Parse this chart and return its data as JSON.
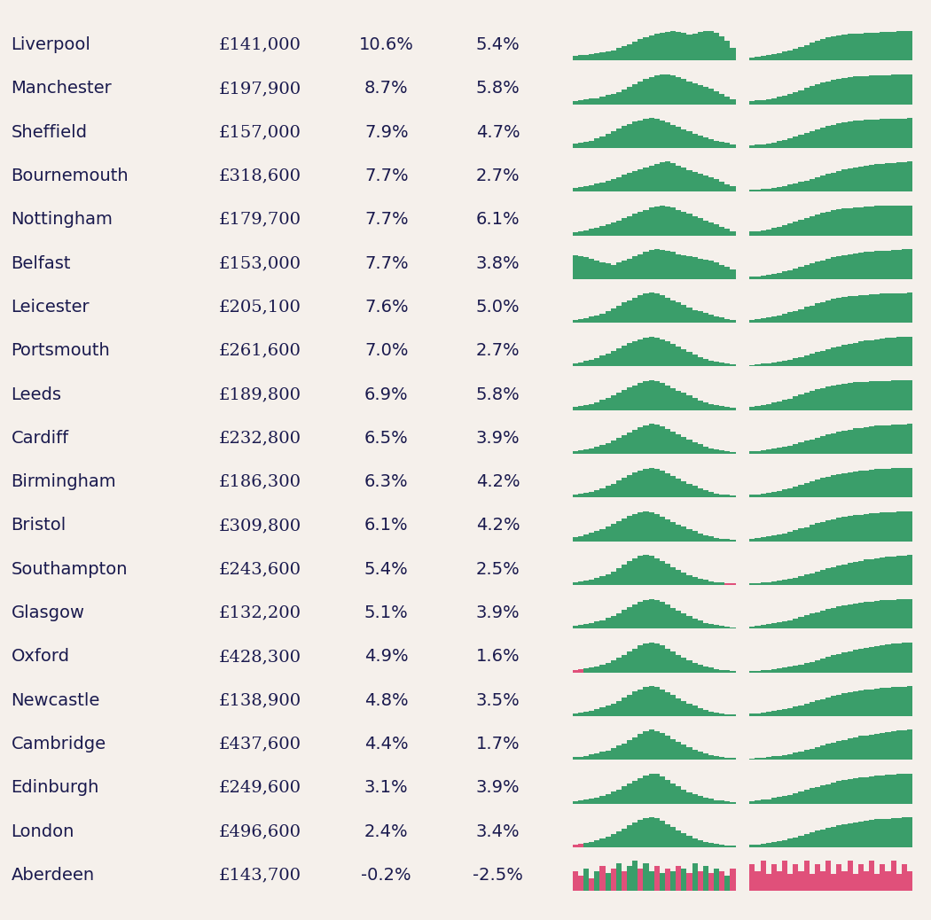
{
  "cities": [
    "Liverpool",
    "Manchester",
    "Sheffield",
    "Bournemouth",
    "Nottingham",
    "Belfast",
    "Leicester",
    "Portsmouth",
    "Leeds",
    "Cardiff",
    "Birmingham",
    "Bristol",
    "Southampton",
    "Glasgow",
    "Oxford",
    "Newcastle",
    "Cambridge",
    "Edinburgh",
    "London",
    "Aberdeen"
  ],
  "prices": [
    "£141,000",
    "£197,900",
    "£157,000",
    "£318,600",
    "£179,700",
    "£153,000",
    "£205,100",
    "£261,600",
    "£189,800",
    "£232,800",
    "£186,300",
    "£309,800",
    "£243,600",
    "£132,200",
    "£428,300",
    "£138,900",
    "£437,600",
    "£249,600",
    "£496,600",
    "£143,700"
  ],
  "pct_2021": [
    10.6,
    8.7,
    7.9,
    7.7,
    7.7,
    7.7,
    7.6,
    7.0,
    6.9,
    6.5,
    6.3,
    6.1,
    5.4,
    5.1,
    4.9,
    4.8,
    4.4,
    3.1,
    2.4,
    -0.2
  ],
  "pct_5yr": [
    5.4,
    5.8,
    4.7,
    2.7,
    6.1,
    3.8,
    5.0,
    2.7,
    5.8,
    3.9,
    4.2,
    4.2,
    2.5,
    3.9,
    1.6,
    3.5,
    1.7,
    3.9,
    3.4,
    -2.5
  ],
  "bg_color": "#f5f0eb",
  "text_color": "#1a1a4e",
  "green_color": "#3a9e6a",
  "pink_color": "#e0507a",
  "city_fontsize": 14,
  "data_fontsize": 14,
  "spark1_shapes": [
    [
      0.15,
      0.17,
      0.18,
      0.2,
      0.22,
      0.25,
      0.28,
      0.32,
      0.38,
      0.44,
      0.5,
      0.58,
      0.65,
      0.72,
      0.78,
      0.82,
      0.86,
      0.88,
      0.9,
      0.88,
      0.85,
      0.8,
      0.82,
      0.88,
      0.92,
      0.9,
      0.85,
      0.75,
      0.6,
      0.4
    ],
    [
      0.1,
      0.12,
      0.14,
      0.16,
      0.18,
      0.22,
      0.26,
      0.3,
      0.36,
      0.42,
      0.5,
      0.58,
      0.65,
      0.72,
      0.78,
      0.82,
      0.85,
      0.86,
      0.82,
      0.78,
      0.72,
      0.65,
      0.6,
      0.55,
      0.5,
      0.45,
      0.38,
      0.3,
      0.22,
      0.15
    ],
    [
      0.12,
      0.14,
      0.16,
      0.2,
      0.25,
      0.3,
      0.38,
      0.45,
      0.52,
      0.58,
      0.64,
      0.7,
      0.74,
      0.78,
      0.8,
      0.78,
      0.74,
      0.68,
      0.62,
      0.56,
      0.5,
      0.44,
      0.38,
      0.32,
      0.28,
      0.24,
      0.2,
      0.16,
      0.13,
      0.1
    ],
    [
      0.1,
      0.12,
      0.15,
      0.18,
      0.22,
      0.26,
      0.3,
      0.35,
      0.4,
      0.46,
      0.52,
      0.56,
      0.62,
      0.66,
      0.72,
      0.76,
      0.8,
      0.82,
      0.78,
      0.72,
      0.66,
      0.6,
      0.55,
      0.5,
      0.45,
      0.4,
      0.35,
      0.28,
      0.2,
      0.14
    ],
    [
      0.08,
      0.1,
      0.12,
      0.15,
      0.18,
      0.22,
      0.26,
      0.3,
      0.35,
      0.4,
      0.45,
      0.5,
      0.55,
      0.6,
      0.65,
      0.68,
      0.7,
      0.68,
      0.65,
      0.6,
      0.55,
      0.5,
      0.45,
      0.4,
      0.35,
      0.3,
      0.25,
      0.2,
      0.15,
      0.1
    ],
    [
      0.5,
      0.48,
      0.45,
      0.42,
      0.38,
      0.35,
      0.32,
      0.3,
      0.35,
      0.38,
      0.42,
      0.48,
      0.52,
      0.56,
      0.6,
      0.62,
      0.6,
      0.58,
      0.56,
      0.52,
      0.5,
      0.48,
      0.45,
      0.42,
      0.4,
      0.38,
      0.35,
      0.3,
      0.25,
      0.2
    ],
    [
      0.08,
      0.1,
      0.12,
      0.15,
      0.18,
      0.22,
      0.28,
      0.35,
      0.42,
      0.5,
      0.56,
      0.62,
      0.68,
      0.72,
      0.74,
      0.72,
      0.68,
      0.62,
      0.56,
      0.5,
      0.44,
      0.38,
      0.32,
      0.28,
      0.24,
      0.2,
      0.16,
      0.13,
      0.1,
      0.08
    ],
    [
      0.08,
      0.1,
      0.13,
      0.16,
      0.2,
      0.25,
      0.3,
      0.36,
      0.42,
      0.48,
      0.54,
      0.6,
      0.64,
      0.68,
      0.7,
      0.68,
      0.64,
      0.58,
      0.52,
      0.46,
      0.4,
      0.34,
      0.28,
      0.22,
      0.18,
      0.14,
      0.11,
      0.09,
      0.07,
      0.06
    ],
    [
      0.08,
      0.1,
      0.12,
      0.15,
      0.19,
      0.24,
      0.29,
      0.35,
      0.41,
      0.47,
      0.53,
      0.58,
      0.63,
      0.67,
      0.7,
      0.68,
      0.64,
      0.58,
      0.52,
      0.46,
      0.4,
      0.34,
      0.28,
      0.23,
      0.18,
      0.14,
      0.11,
      0.09,
      0.07,
      0.06
    ],
    [
      0.06,
      0.08,
      0.1,
      0.13,
      0.16,
      0.2,
      0.25,
      0.3,
      0.36,
      0.42,
      0.48,
      0.54,
      0.6,
      0.65,
      0.68,
      0.66,
      0.62,
      0.56,
      0.5,
      0.44,
      0.38,
      0.32,
      0.27,
      0.22,
      0.17,
      0.13,
      0.1,
      0.08,
      0.06,
      0.05
    ],
    [
      0.06,
      0.08,
      0.1,
      0.13,
      0.16,
      0.2,
      0.25,
      0.3,
      0.36,
      0.42,
      0.48,
      0.54,
      0.58,
      0.62,
      0.64,
      0.62,
      0.58,
      0.52,
      0.46,
      0.4,
      0.35,
      0.3,
      0.25,
      0.2,
      0.16,
      0.12,
      0.09,
      0.07,
      0.06,
      0.05
    ],
    [
      0.1,
      0.12,
      0.15,
      0.19,
      0.23,
      0.28,
      0.34,
      0.4,
      0.46,
      0.52,
      0.58,
      0.62,
      0.66,
      0.68,
      0.66,
      0.62,
      0.56,
      0.5,
      0.44,
      0.38,
      0.33,
      0.28,
      0.23,
      0.18,
      0.14,
      0.11,
      0.08,
      0.06,
      0.05,
      0.04
    ],
    [
      0.06,
      0.07,
      0.09,
      0.11,
      0.14,
      0.18,
      0.22,
      0.27,
      0.33,
      0.4,
      0.48,
      0.54,
      0.58,
      0.6,
      0.58,
      0.54,
      0.48,
      0.42,
      0.36,
      0.3,
      0.25,
      0.2,
      0.16,
      0.13,
      0.1,
      0.08,
      0.06,
      0.05,
      0.04,
      0.03
    ],
    [
      0.05,
      0.07,
      0.09,
      0.11,
      0.14,
      0.17,
      0.21,
      0.26,
      0.31,
      0.37,
      0.43,
      0.49,
      0.54,
      0.58,
      0.6,
      0.58,
      0.54,
      0.48,
      0.42,
      0.36,
      0.3,
      0.25,
      0.2,
      0.16,
      0.12,
      0.09,
      0.07,
      0.05,
      0.04,
      0.03
    ],
    [
      0.05,
      0.06,
      0.08,
      0.1,
      0.12,
      0.15,
      0.19,
      0.23,
      0.28,
      0.34,
      0.4,
      0.46,
      0.52,
      0.56,
      0.58,
      0.56,
      0.52,
      0.46,
      0.4,
      0.34,
      0.29,
      0.24,
      0.19,
      0.15,
      0.12,
      0.09,
      0.07,
      0.05,
      0.04,
      0.03
    ],
    [
      0.05,
      0.07,
      0.09,
      0.11,
      0.14,
      0.17,
      0.21,
      0.25,
      0.3,
      0.36,
      0.42,
      0.48,
      0.53,
      0.57,
      0.59,
      0.57,
      0.53,
      0.47,
      0.41,
      0.35,
      0.3,
      0.25,
      0.2,
      0.16,
      0.12,
      0.09,
      0.07,
      0.05,
      0.04,
      0.03
    ],
    [
      0.05,
      0.06,
      0.08,
      0.1,
      0.12,
      0.15,
      0.18,
      0.22,
      0.27,
      0.32,
      0.38,
      0.44,
      0.5,
      0.55,
      0.58,
      0.56,
      0.52,
      0.46,
      0.4,
      0.34,
      0.29,
      0.24,
      0.2,
      0.16,
      0.12,
      0.09,
      0.07,
      0.05,
      0.04,
      0.03
    ],
    [
      0.04,
      0.05,
      0.07,
      0.09,
      0.11,
      0.14,
      0.17,
      0.21,
      0.25,
      0.3,
      0.35,
      0.4,
      0.45,
      0.5,
      0.53,
      0.52,
      0.48,
      0.42,
      0.36,
      0.3,
      0.25,
      0.2,
      0.16,
      0.13,
      0.1,
      0.08,
      0.06,
      0.05,
      0.04,
      0.03
    ],
    [
      0.04,
      0.05,
      0.07,
      0.09,
      0.11,
      0.14,
      0.17,
      0.21,
      0.25,
      0.3,
      0.35,
      0.4,
      0.44,
      0.47,
      0.48,
      0.46,
      0.42,
      0.37,
      0.32,
      0.27,
      0.22,
      0.18,
      0.14,
      0.11,
      0.09,
      0.07,
      0.05,
      0.04,
      0.03,
      0.02
    ],
    [
      0.08,
      0.06,
      0.09,
      0.05,
      0.08,
      0.1,
      0.07,
      0.09,
      0.11,
      0.08,
      0.1,
      0.12,
      0.09,
      0.11,
      0.08,
      0.1,
      0.07,
      0.09,
      0.08,
      0.1,
      0.09,
      0.07,
      0.11,
      0.08,
      0.1,
      0.07,
      0.09,
      0.08,
      0.06,
      0.09
    ]
  ],
  "spark1_pink_indices": {
    "12": [
      28,
      29
    ],
    "14": [
      0,
      1
    ],
    "18": [
      0,
      1
    ],
    "19": [
      0,
      1,
      3,
      5,
      7,
      9,
      12,
      15,
      17,
      19,
      21,
      23,
      25,
      27,
      29
    ]
  },
  "spark2_shapes": [
    [
      0.1,
      0.12,
      0.14,
      0.17,
      0.2,
      0.24,
      0.28,
      0.33,
      0.38,
      0.44,
      0.5,
      0.56,
      0.62,
      0.68,
      0.73,
      0.77,
      0.8,
      0.82,
      0.84,
      0.85,
      0.86,
      0.87,
      0.88,
      0.89,
      0.9,
      0.91,
      0.92,
      0.93,
      0.94,
      0.95
    ],
    [
      0.1,
      0.12,
      0.14,
      0.17,
      0.2,
      0.24,
      0.29,
      0.34,
      0.4,
      0.46,
      0.53,
      0.59,
      0.65,
      0.7,
      0.75,
      0.79,
      0.83,
      0.86,
      0.88,
      0.9,
      0.91,
      0.92,
      0.93,
      0.94,
      0.95,
      0.95,
      0.96,
      0.96,
      0.97,
      0.97
    ],
    [
      0.08,
      0.1,
      0.12,
      0.15,
      0.18,
      0.22,
      0.26,
      0.31,
      0.36,
      0.42,
      0.48,
      0.54,
      0.6,
      0.65,
      0.7,
      0.74,
      0.78,
      0.81,
      0.84,
      0.86,
      0.88,
      0.89,
      0.9,
      0.91,
      0.92,
      0.93,
      0.93,
      0.94,
      0.94,
      0.95
    ],
    [
      0.05,
      0.06,
      0.08,
      0.1,
      0.12,
      0.15,
      0.18,
      0.21,
      0.25,
      0.29,
      0.34,
      0.39,
      0.44,
      0.49,
      0.54,
      0.58,
      0.63,
      0.67,
      0.71,
      0.74,
      0.77,
      0.79,
      0.81,
      0.83,
      0.85,
      0.87,
      0.88,
      0.89,
      0.9,
      0.91
    ],
    [
      0.12,
      0.14,
      0.17,
      0.2,
      0.24,
      0.28,
      0.33,
      0.38,
      0.44,
      0.5,
      0.56,
      0.62,
      0.68,
      0.73,
      0.77,
      0.81,
      0.84,
      0.87,
      0.89,
      0.91,
      0.92,
      0.93,
      0.94,
      0.95,
      0.95,
      0.96,
      0.96,
      0.97,
      0.97,
      0.97
    ],
    [
      0.07,
      0.09,
      0.11,
      0.14,
      0.17,
      0.2,
      0.24,
      0.28,
      0.33,
      0.38,
      0.43,
      0.49,
      0.54,
      0.59,
      0.64,
      0.68,
      0.72,
      0.75,
      0.78,
      0.81,
      0.83,
      0.85,
      0.87,
      0.88,
      0.89,
      0.9,
      0.91,
      0.92,
      0.93,
      0.94
    ],
    [
      0.1,
      0.12,
      0.14,
      0.17,
      0.2,
      0.24,
      0.28,
      0.33,
      0.38,
      0.44,
      0.5,
      0.55,
      0.61,
      0.66,
      0.71,
      0.75,
      0.79,
      0.82,
      0.84,
      0.86,
      0.88,
      0.89,
      0.9,
      0.91,
      0.92,
      0.93,
      0.93,
      0.94,
      0.94,
      0.95
    ],
    [
      0.05,
      0.06,
      0.08,
      0.1,
      0.12,
      0.14,
      0.17,
      0.2,
      0.24,
      0.28,
      0.32,
      0.37,
      0.42,
      0.46,
      0.51,
      0.55,
      0.59,
      0.63,
      0.67,
      0.7,
      0.73,
      0.76,
      0.78,
      0.8,
      0.82,
      0.84,
      0.85,
      0.86,
      0.87,
      0.88
    ],
    [
      0.12,
      0.14,
      0.17,
      0.2,
      0.24,
      0.28,
      0.33,
      0.38,
      0.44,
      0.5,
      0.56,
      0.62,
      0.67,
      0.72,
      0.77,
      0.8,
      0.83,
      0.86,
      0.88,
      0.9,
      0.91,
      0.92,
      0.93,
      0.94,
      0.95,
      0.95,
      0.96,
      0.96,
      0.97,
      0.97
    ],
    [
      0.08,
      0.09,
      0.11,
      0.13,
      0.16,
      0.19,
      0.22,
      0.26,
      0.3,
      0.35,
      0.4,
      0.45,
      0.5,
      0.55,
      0.6,
      0.64,
      0.68,
      0.72,
      0.75,
      0.78,
      0.8,
      0.82,
      0.84,
      0.86,
      0.87,
      0.88,
      0.89,
      0.9,
      0.91,
      0.92
    ],
    [
      0.08,
      0.1,
      0.12,
      0.15,
      0.18,
      0.21,
      0.25,
      0.29,
      0.34,
      0.39,
      0.44,
      0.5,
      0.55,
      0.6,
      0.64,
      0.68,
      0.72,
      0.75,
      0.78,
      0.8,
      0.82,
      0.84,
      0.86,
      0.87,
      0.88,
      0.89,
      0.9,
      0.91,
      0.92,
      0.92
    ],
    [
      0.08,
      0.1,
      0.12,
      0.15,
      0.18,
      0.21,
      0.25,
      0.29,
      0.34,
      0.39,
      0.44,
      0.5,
      0.55,
      0.6,
      0.64,
      0.68,
      0.72,
      0.75,
      0.78,
      0.8,
      0.82,
      0.84,
      0.86,
      0.87,
      0.88,
      0.89,
      0.9,
      0.91,
      0.92,
      0.92
    ],
    [
      0.04,
      0.05,
      0.07,
      0.08,
      0.1,
      0.12,
      0.15,
      0.18,
      0.21,
      0.25,
      0.29,
      0.33,
      0.37,
      0.42,
      0.46,
      0.5,
      0.54,
      0.58,
      0.62,
      0.65,
      0.68,
      0.71,
      0.73,
      0.75,
      0.77,
      0.79,
      0.8,
      0.82,
      0.83,
      0.84
    ],
    [
      0.07,
      0.09,
      0.11,
      0.13,
      0.16,
      0.19,
      0.22,
      0.26,
      0.3,
      0.35,
      0.4,
      0.45,
      0.5,
      0.55,
      0.59,
      0.63,
      0.67,
      0.7,
      0.73,
      0.76,
      0.78,
      0.8,
      0.82,
      0.84,
      0.85,
      0.86,
      0.87,
      0.88,
      0.89,
      0.9
    ],
    [
      0.03,
      0.04,
      0.05,
      0.06,
      0.08,
      0.1,
      0.12,
      0.14,
      0.17,
      0.2,
      0.23,
      0.27,
      0.31,
      0.35,
      0.39,
      0.43,
      0.47,
      0.51,
      0.54,
      0.57,
      0.6,
      0.63,
      0.65,
      0.67,
      0.69,
      0.71,
      0.73,
      0.74,
      0.75,
      0.76
    ],
    [
      0.07,
      0.08,
      0.1,
      0.12,
      0.14,
      0.17,
      0.2,
      0.23,
      0.27,
      0.31,
      0.36,
      0.4,
      0.45,
      0.49,
      0.54,
      0.58,
      0.61,
      0.65,
      0.68,
      0.71,
      0.73,
      0.75,
      0.77,
      0.79,
      0.8,
      0.82,
      0.83,
      0.84,
      0.85,
      0.86
    ],
    [
      0.03,
      0.04,
      0.05,
      0.06,
      0.08,
      0.1,
      0.12,
      0.14,
      0.17,
      0.2,
      0.23,
      0.27,
      0.31,
      0.34,
      0.38,
      0.41,
      0.45,
      0.48,
      0.51,
      0.54,
      0.57,
      0.59,
      0.61,
      0.63,
      0.65,
      0.67,
      0.68,
      0.7,
      0.71,
      0.72
    ],
    [
      0.07,
      0.09,
      0.11,
      0.13,
      0.16,
      0.19,
      0.22,
      0.26,
      0.3,
      0.35,
      0.4,
      0.45,
      0.5,
      0.54,
      0.58,
      0.62,
      0.66,
      0.69,
      0.72,
      0.75,
      0.77,
      0.79,
      0.81,
      0.83,
      0.84,
      0.85,
      0.86,
      0.87,
      0.88,
      0.89
    ],
    [
      0.06,
      0.08,
      0.1,
      0.12,
      0.14,
      0.17,
      0.2,
      0.24,
      0.28,
      0.32,
      0.37,
      0.42,
      0.47,
      0.51,
      0.55,
      0.59,
      0.63,
      0.66,
      0.69,
      0.72,
      0.74,
      0.76,
      0.78,
      0.8,
      0.81,
      0.82,
      0.83,
      0.84,
      0.85,
      0.86
    ],
    [
      0.08,
      0.06,
      0.09,
      0.05,
      0.08,
      0.06,
      0.09,
      0.05,
      0.08,
      0.06,
      0.09,
      0.05,
      0.08,
      0.06,
      0.09,
      0.05,
      0.08,
      0.06,
      0.09,
      0.05,
      0.08,
      0.06,
      0.09,
      0.05,
      0.08,
      0.06,
      0.09,
      0.05,
      0.08,
      0.06
    ]
  ],
  "spark2_pink_indices": {
    "19": [
      0,
      1,
      2,
      3,
      4,
      5,
      6,
      7,
      8,
      9,
      10,
      11,
      12,
      13,
      14,
      15,
      16,
      17,
      18,
      19,
      20,
      21,
      22,
      23,
      24,
      25,
      26,
      27,
      28,
      29
    ]
  }
}
